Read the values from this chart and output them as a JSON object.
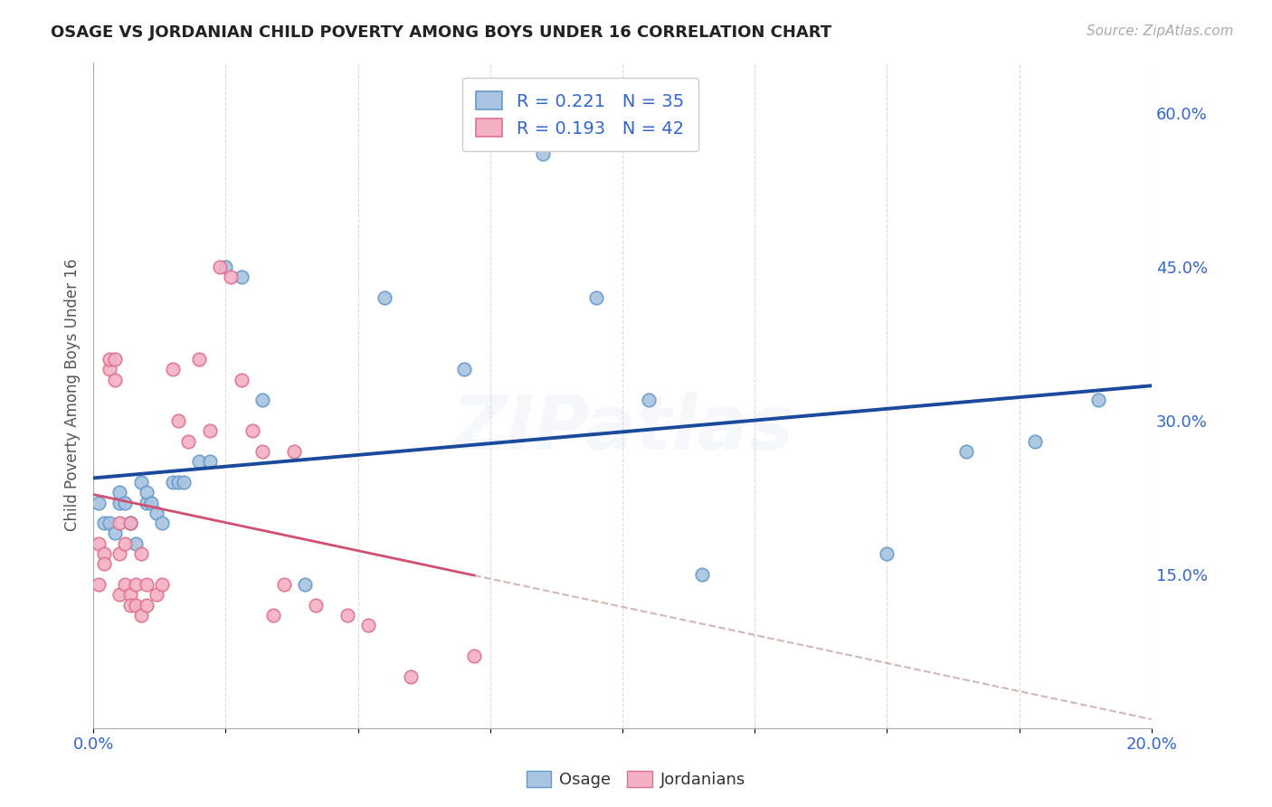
{
  "title": "OSAGE VS JORDANIAN CHILD POVERTY AMONG BOYS UNDER 16 CORRELATION CHART",
  "source": "Source: ZipAtlas.com",
  "ylabel": "Child Poverty Among Boys Under 16",
  "xlim": [
    0.0,
    0.2
  ],
  "ylim": [
    0.0,
    0.65
  ],
  "yticks_right": [
    0.15,
    0.3,
    0.45,
    0.6
  ],
  "ytick_labels_right": [
    "15.0%",
    "30.0%",
    "45.0%",
    "60.0%"
  ],
  "osage_color": "#a8c4e0",
  "osage_edge_color": "#6699cc",
  "jordanian_color": "#f4b0c5",
  "jordanian_edge_color": "#e07090",
  "trend_osage_color": "#1a4a9e",
  "trend_jordan_color": "#d05070",
  "trend_jordan_ext_color": "#ccaaaa",
  "R_osage": 0.221,
  "N_osage": 35,
  "R_jordan": 0.193,
  "N_jordan": 42,
  "legend_label_osage": "R = 0.221   N = 35",
  "legend_label_jordan": "R = 0.193   N = 42",
  "watermark": "ZIPatlas",
  "osage_x": [
    0.001,
    0.002,
    0.003,
    0.004,
    0.005,
    0.005,
    0.006,
    0.007,
    0.007,
    0.008,
    0.009,
    0.01,
    0.01,
    0.011,
    0.012,
    0.013,
    0.015,
    0.016,
    0.017,
    0.02,
    0.022,
    0.025,
    0.028,
    0.032,
    0.04,
    0.055,
    0.07,
    0.085,
    0.095,
    0.105,
    0.115,
    0.15,
    0.165,
    0.178,
    0.19
  ],
  "osage_y": [
    0.22,
    0.2,
    0.2,
    0.19,
    0.22,
    0.23,
    0.22,
    0.2,
    0.2,
    0.18,
    0.24,
    0.22,
    0.23,
    0.22,
    0.21,
    0.2,
    0.24,
    0.24,
    0.24,
    0.26,
    0.26,
    0.45,
    0.44,
    0.32,
    0.14,
    0.42,
    0.35,
    0.56,
    0.42,
    0.32,
    0.15,
    0.17,
    0.27,
    0.28,
    0.32
  ],
  "jordan_x": [
    0.001,
    0.001,
    0.002,
    0.002,
    0.003,
    0.003,
    0.004,
    0.004,
    0.005,
    0.005,
    0.005,
    0.006,
    0.006,
    0.007,
    0.007,
    0.007,
    0.008,
    0.008,
    0.009,
    0.009,
    0.01,
    0.01,
    0.012,
    0.013,
    0.015,
    0.016,
    0.018,
    0.02,
    0.022,
    0.024,
    0.026,
    0.028,
    0.03,
    0.032,
    0.034,
    0.036,
    0.038,
    0.042,
    0.048,
    0.052,
    0.06,
    0.072
  ],
  "jordan_y": [
    0.18,
    0.14,
    0.17,
    0.16,
    0.35,
    0.36,
    0.36,
    0.34,
    0.2,
    0.17,
    0.13,
    0.18,
    0.14,
    0.2,
    0.13,
    0.12,
    0.14,
    0.12,
    0.11,
    0.17,
    0.12,
    0.14,
    0.13,
    0.14,
    0.35,
    0.3,
    0.28,
    0.36,
    0.29,
    0.45,
    0.44,
    0.34,
    0.29,
    0.27,
    0.11,
    0.14,
    0.27,
    0.12,
    0.11,
    0.1,
    0.05,
    0.07
  ],
  "jordan_trend_xmax": 0.072,
  "jordan_trend_ext_xmax": 0.2,
  "grid_color": "#cccccc",
  "spine_color": "#aaaaaa",
  "tick_color": "#3366cc",
  "title_fontsize": 13,
  "source_fontsize": 11,
  "tick_fontsize": 13,
  "ylabel_fontsize": 12,
  "legend_fontsize": 14,
  "scatter_size": 110,
  "watermark_fontsize": 60,
  "watermark_alpha": 0.18
}
